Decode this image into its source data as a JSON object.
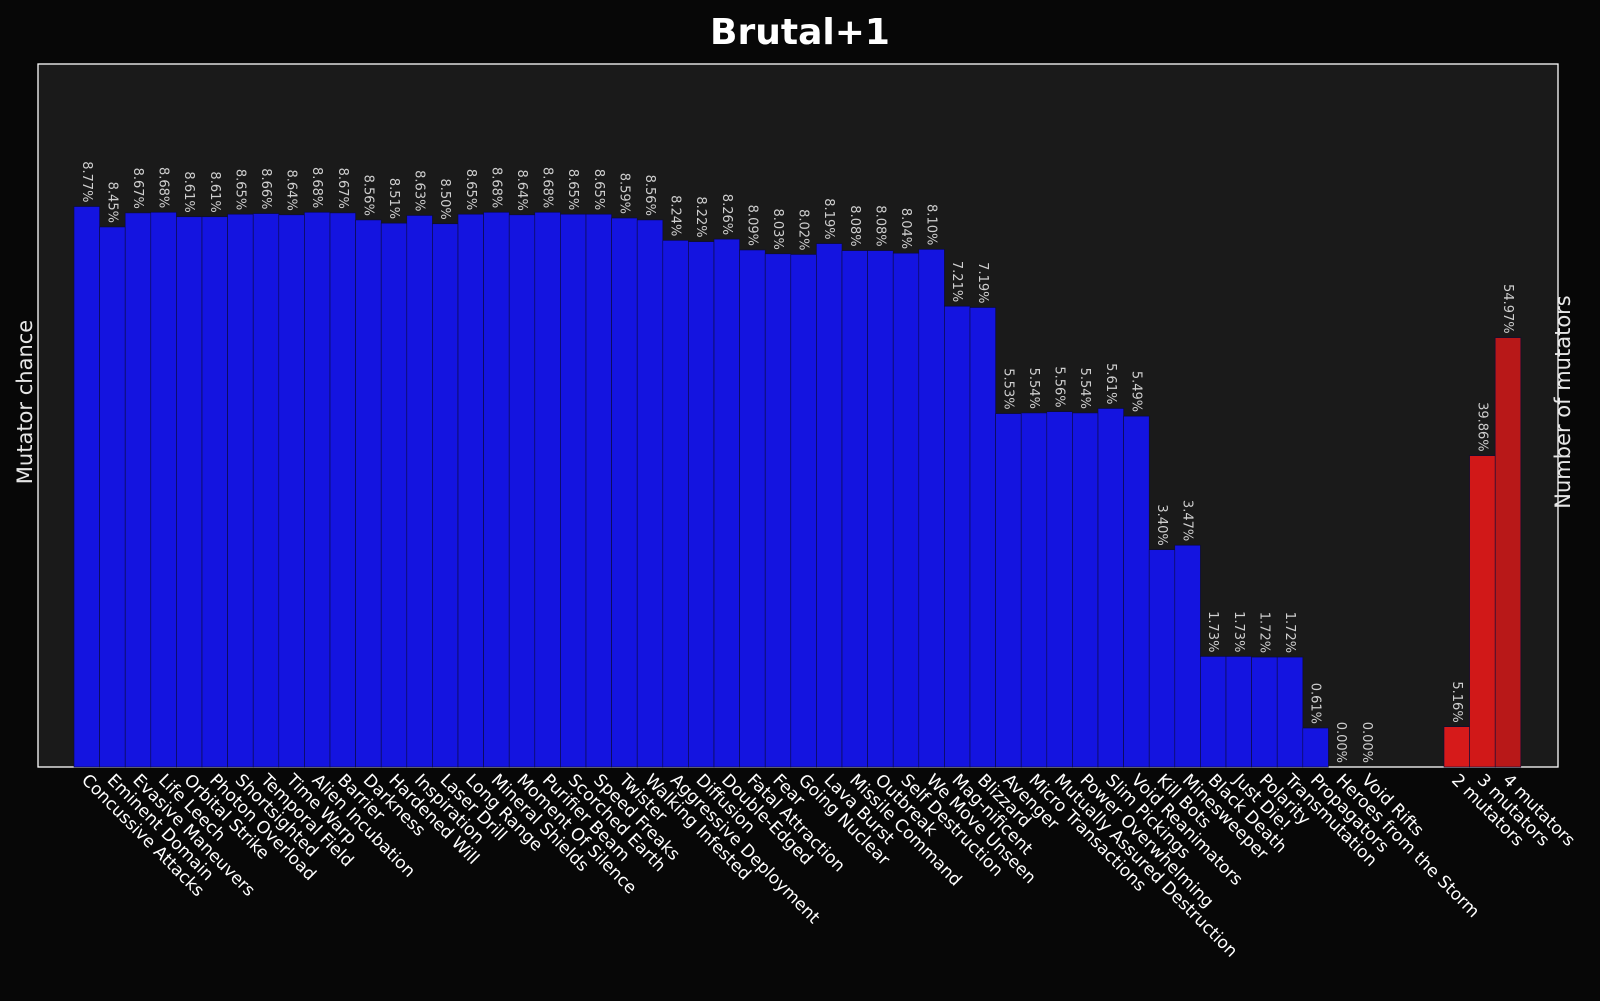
{
  "chart_data": [
    {
      "type": "bar",
      "title": "Brutal+1",
      "ylabel": "Mutator chance",
      "ylim": [
        0,
        11
      ],
      "grid": false,
      "colors": {
        "bar": "#1414e0",
        "background": "#1a1a1a",
        "page": "#070707",
        "frame": "#ffffff"
      },
      "categories": [
        "Concussive Attacks",
        "Eminent Domain",
        "Evasive Maneuvers",
        "Life Leech",
        "Orbital Strike",
        "Photon Overload",
        "Shortsighted",
        "Temporal Field",
        "Time Warp",
        "Alien Incubation",
        "Barrier",
        "Darkness",
        "Hardened Will",
        "Inspiration",
        "Laser Drill",
        "Long Range",
        "Mineral Shields",
        "Moment Of Silence",
        "Purifier Beam",
        "Scorched Earth",
        "Speed Freaks",
        "Twister",
        "Walking Infested",
        "Aggressive Deployment",
        "Diffusion",
        "Double-Edged",
        "Fatal Attraction",
        "Fear",
        "Going Nuclear",
        "Lava Burst",
        "Missile Command",
        "Outbreak",
        "Self Destruction",
        "We Move Unseen",
        "Mag-nificent",
        "Blizzard",
        "Avenger",
        "Micro Transactions",
        "Mutually Assured Destruction",
        "Power Overwhelming",
        "Slim Pickings",
        "Void Reanimators",
        "Kill Bots",
        "Minesweeper",
        "Black Death",
        "Just Die!",
        "Polarity",
        "Transmutation",
        "Propagators",
        "Heroes from the Storm",
        "Void Rifts"
      ],
      "values": [
        8.77,
        8.45,
        8.67,
        8.68,
        8.61,
        8.61,
        8.65,
        8.66,
        8.64,
        8.68,
        8.67,
        8.56,
        8.51,
        8.63,
        8.5,
        8.65,
        8.68,
        8.64,
        8.68,
        8.65,
        8.65,
        8.59,
        8.56,
        8.24,
        8.22,
        8.26,
        8.09,
        8.03,
        8.02,
        8.19,
        8.08,
        8.08,
        8.04,
        8.1,
        7.21,
        7.19,
        5.53,
        5.54,
        5.56,
        5.54,
        5.61,
        5.49,
        3.4,
        3.47,
        1.73,
        1.73,
        1.72,
        1.72,
        0.61,
        0.0,
        0.0
      ],
      "data_labels": [
        "8.77%",
        "8.45%",
        "8.67%",
        "8.68%",
        "8.61%",
        "8.61%",
        "8.65%",
        "8.66%",
        "8.64%",
        "8.68%",
        "8.67%",
        "8.56%",
        "8.51%",
        "8.63%",
        "8.50%",
        "8.65%",
        "8.68%",
        "8.64%",
        "8.68%",
        "8.65%",
        "8.65%",
        "8.59%",
        "8.56%",
        "8.24%",
        "8.22%",
        "8.26%",
        "8.09%",
        "8.03%",
        "8.02%",
        "8.19%",
        "8.08%",
        "8.08%",
        "8.04%",
        "8.10%",
        "7.21%",
        "7.19%",
        "5.53%",
        "5.54%",
        "5.56%",
        "5.54%",
        "5.61%",
        "5.49%",
        "3.40%",
        "3.47%",
        "1.73%",
        "1.73%",
        "1.72%",
        "1.72%",
        "0.61%",
        "0.00%",
        "0.00%"
      ]
    },
    {
      "type": "bar",
      "ylabel": "Number of mutators",
      "ylim": [
        0,
        90
      ],
      "colors": {
        "bars": [
          "#d61a1a",
          "#d11818",
          "#b81818"
        ]
      },
      "categories": [
        "2 mutators",
        "3 mutators",
        "4 mutators"
      ],
      "values": [
        5.16,
        39.86,
        54.97
      ],
      "data_labels": [
        "5.16%",
        "39.86%",
        "54.97%"
      ]
    }
  ]
}
